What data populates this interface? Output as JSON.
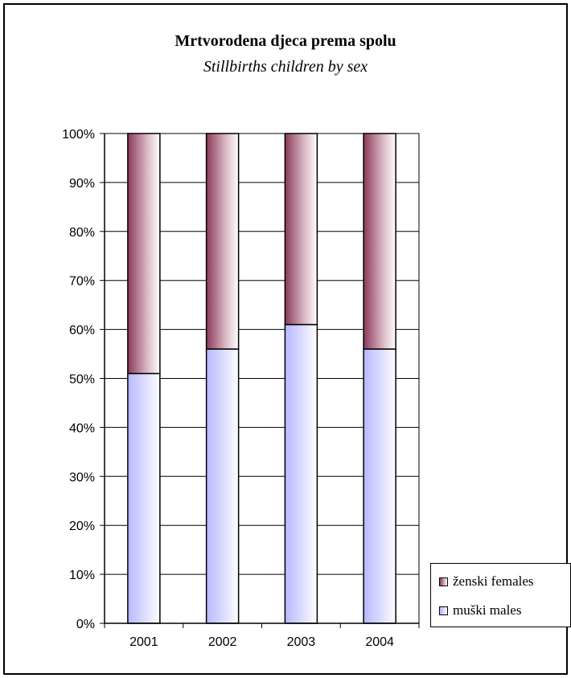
{
  "chart_data": {
    "type": "bar",
    "stacked": true,
    "percent": true,
    "title": "Mrtvorodena djeca prema spolu",
    "subtitle": "Stillbirths children by sex",
    "categories": [
      "2001",
      "2002",
      "2003",
      "2004"
    ],
    "series": [
      {
        "name": "muški males",
        "values": [
          51,
          56,
          61,
          56
        ],
        "color": "#b3b3ff"
      },
      {
        "name": "ženski females",
        "values": [
          49,
          44,
          39,
          44
        ],
        "color": "#8b3a5a"
      }
    ],
    "y_ticks": [
      "0%",
      "10%",
      "20%",
      "30%",
      "40%",
      "50%",
      "60%",
      "70%",
      "80%",
      "90%",
      "100%"
    ],
    "ylim": [
      0,
      100
    ],
    "grid": true,
    "legend_position": "right"
  }
}
